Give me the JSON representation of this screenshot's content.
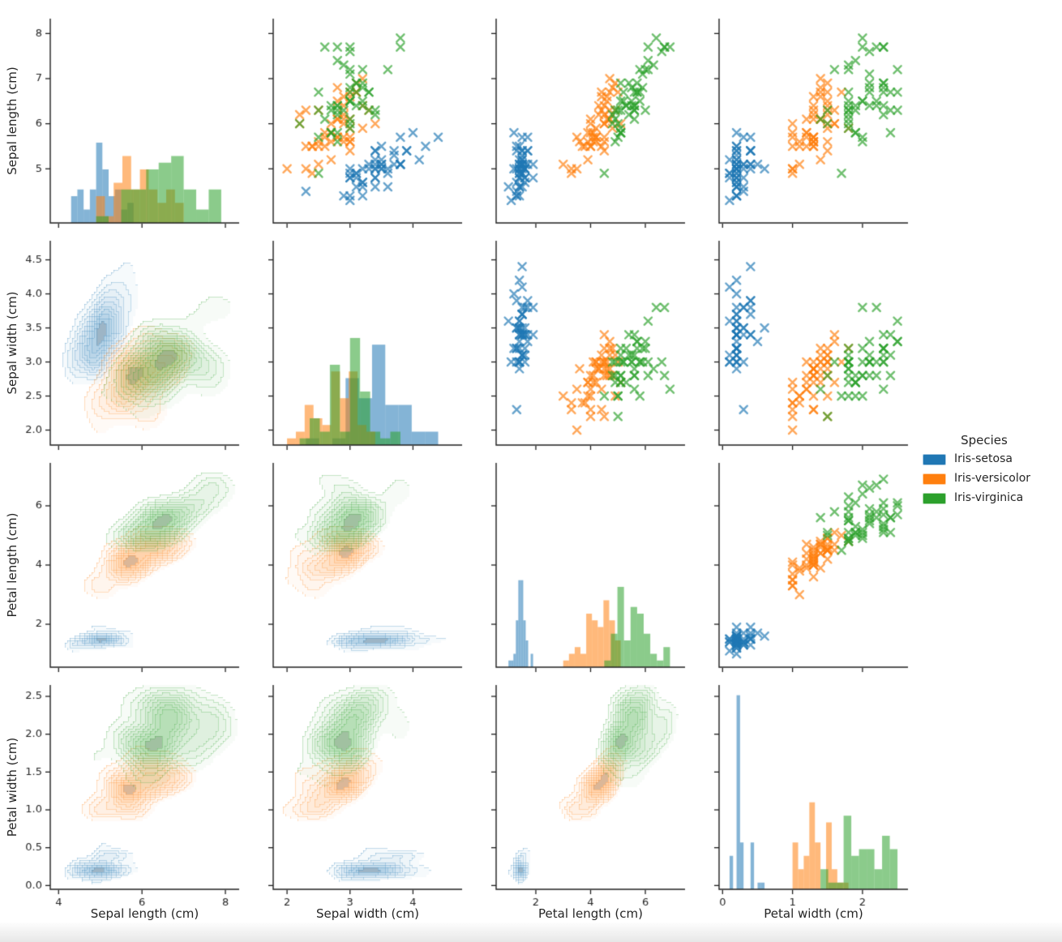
{
  "page": {
    "background": "#ffffff"
  },
  "legend": {
    "title": "Species",
    "entries": [
      {
        "label": "Iris-setosa",
        "color": "#1f77b4"
      },
      {
        "label": "Iris-versicolor",
        "color": "#ff7f0e"
      },
      {
        "label": "Iris-virginica",
        "color": "#2ca02c"
      }
    ]
  },
  "chart_data": {
    "type": "scatter",
    "subtype": "pairplot-matrix",
    "diagonal": "overlaid per-species histograms",
    "upper_triangle": "scatter with x markers",
    "lower_triangle": "filled KDE density contours",
    "grid": false,
    "legend_position": "right",
    "marker": "x",
    "variables": [
      {
        "key": "sepal_length",
        "label": "Sepal length (cm)",
        "lim": [
          3.8,
          8.33
        ],
        "xticks": [
          4,
          6,
          8
        ],
        "xtick_labels": [
          "4",
          "6",
          "8"
        ],
        "yticks": [
          5,
          6,
          7,
          8
        ],
        "ytick_labels": [
          "5",
          "6",
          "7",
          "8"
        ]
      },
      {
        "key": "sepal_width",
        "label": "Sepal width (cm)",
        "lim": [
          1.78,
          4.78
        ],
        "xticks": [
          2,
          3,
          4
        ],
        "xtick_labels": [
          "2",
          "3",
          "4"
        ],
        "yticks": [
          2.0,
          2.5,
          3.0,
          3.5,
          4.0,
          4.5
        ],
        "ytick_labels": [
          "2.0",
          "2.5",
          "3.0",
          "3.5",
          "4.0",
          "4.5"
        ]
      },
      {
        "key": "petal_length",
        "label": "Petal length (cm)",
        "lim": [
          0.55,
          7.45
        ],
        "xticks": [
          2,
          4,
          6
        ],
        "xtick_labels": [
          "2",
          "4",
          "6"
        ],
        "yticks": [
          2,
          4,
          6
        ],
        "ytick_labels": [
          "2",
          "4",
          "6"
        ]
      },
      {
        "key": "petal_width",
        "label": "Petal width (cm)",
        "lim": [
          -0.05,
          2.65
        ],
        "xticks": [
          0,
          1,
          2
        ],
        "xtick_labels": [
          "0",
          "1",
          "2"
        ],
        "yticks": [
          0.0,
          0.5,
          1.0,
          1.5,
          2.0,
          2.5
        ],
        "ytick_labels": [
          "0.0",
          "0.5",
          "1.0",
          "1.5",
          "2.0",
          "2.5"
        ]
      }
    ],
    "series": [
      {
        "name": "Iris-setosa",
        "color": "#1f77b4",
        "sepal_length": [
          5.1,
          4.9,
          4.7,
          4.6,
          5.0,
          5.4,
          4.6,
          5.0,
          4.4,
          4.9,
          5.4,
          4.8,
          4.8,
          4.3,
          5.8,
          5.7,
          5.4,
          5.1,
          5.7,
          5.1,
          5.4,
          5.1,
          4.6,
          5.1,
          4.8,
          5.0,
          5.0,
          5.2,
          5.2,
          4.7,
          4.8,
          5.4,
          5.2,
          5.5,
          4.9,
          5.0,
          5.5,
          4.9,
          4.4,
          5.1,
          5.0,
          4.5,
          4.4,
          5.0,
          5.1,
          4.8,
          5.1,
          4.6,
          5.3,
          5.0
        ],
        "sepal_width": [
          3.5,
          3.0,
          3.2,
          3.1,
          3.6,
          3.9,
          3.4,
          3.4,
          2.9,
          3.1,
          3.7,
          3.4,
          3.0,
          3.0,
          4.0,
          4.4,
          3.9,
          3.5,
          3.8,
          3.8,
          3.4,
          3.7,
          3.6,
          3.3,
          3.4,
          3.0,
          3.4,
          3.5,
          3.4,
          3.2,
          3.1,
          3.4,
          4.1,
          4.2,
          3.1,
          3.2,
          3.5,
          3.6,
          3.0,
          3.4,
          3.5,
          2.3,
          3.2,
          3.5,
          3.8,
          3.0,
          3.8,
          3.2,
          3.7,
          3.3
        ],
        "petal_length": [
          1.4,
          1.4,
          1.3,
          1.5,
          1.4,
          1.7,
          1.4,
          1.5,
          1.4,
          1.5,
          1.5,
          1.6,
          1.4,
          1.1,
          1.2,
          1.5,
          1.3,
          1.4,
          1.7,
          1.5,
          1.7,
          1.5,
          1.0,
          1.7,
          1.9,
          1.6,
          1.6,
          1.5,
          1.4,
          1.6,
          1.6,
          1.5,
          1.5,
          1.4,
          1.5,
          1.2,
          1.3,
          1.4,
          1.3,
          1.5,
          1.3,
          1.3,
          1.3,
          1.6,
          1.9,
          1.4,
          1.6,
          1.4,
          1.5,
          1.4
        ],
        "petal_width": [
          0.2,
          0.2,
          0.2,
          0.2,
          0.2,
          0.4,
          0.3,
          0.2,
          0.2,
          0.1,
          0.2,
          0.2,
          0.1,
          0.1,
          0.2,
          0.4,
          0.4,
          0.3,
          0.3,
          0.3,
          0.2,
          0.4,
          0.2,
          0.5,
          0.2,
          0.2,
          0.4,
          0.2,
          0.2,
          0.2,
          0.2,
          0.4,
          0.1,
          0.2,
          0.2,
          0.2,
          0.2,
          0.1,
          0.2,
          0.2,
          0.3,
          0.3,
          0.2,
          0.6,
          0.4,
          0.3,
          0.2,
          0.2,
          0.2,
          0.2
        ]
      },
      {
        "name": "Iris-versicolor",
        "color": "#ff7f0e",
        "sepal_length": [
          7.0,
          6.4,
          6.9,
          5.5,
          6.5,
          5.7,
          6.3,
          4.9,
          6.6,
          5.2,
          5.0,
          5.9,
          6.0,
          6.1,
          5.6,
          6.7,
          5.6,
          5.8,
          6.2,
          5.6,
          5.9,
          6.1,
          6.3,
          6.1,
          6.4,
          6.6,
          6.8,
          6.7,
          6.0,
          5.7,
          5.5,
          5.5,
          5.8,
          6.0,
          5.4,
          6.0,
          6.7,
          6.3,
          5.6,
          5.5,
          5.5,
          6.1,
          5.8,
          5.0,
          5.6,
          5.7,
          5.7,
          6.2,
          5.1,
          5.7
        ],
        "sepal_width": [
          3.2,
          3.2,
          3.1,
          2.3,
          2.8,
          2.8,
          3.3,
          2.4,
          2.9,
          2.7,
          2.0,
          3.0,
          2.2,
          2.9,
          2.9,
          3.1,
          3.0,
          2.7,
          2.2,
          2.5,
          3.2,
          2.8,
          2.5,
          2.8,
          2.9,
          3.0,
          2.8,
          3.0,
          2.9,
          2.6,
          2.4,
          2.4,
          2.7,
          2.7,
          3.0,
          3.4,
          3.1,
          2.3,
          3.0,
          2.5,
          2.6,
          3.0,
          2.6,
          2.3,
          2.7,
          3.0,
          2.9,
          2.9,
          2.5,
          2.8
        ],
        "petal_length": [
          4.7,
          4.5,
          4.9,
          4.0,
          4.6,
          4.5,
          4.7,
          3.3,
          4.6,
          3.9,
          3.5,
          4.2,
          4.0,
          4.7,
          3.6,
          4.4,
          4.5,
          4.1,
          4.5,
          3.9,
          4.8,
          4.0,
          4.9,
          4.7,
          4.3,
          4.4,
          4.8,
          5.0,
          4.5,
          3.5,
          3.8,
          3.7,
          3.9,
          5.1,
          4.5,
          4.5,
          4.7,
          4.4,
          4.1,
          4.0,
          4.4,
          4.6,
          4.0,
          3.3,
          4.2,
          4.2,
          4.2,
          4.3,
          3.0,
          4.1
        ],
        "petal_width": [
          1.4,
          1.5,
          1.5,
          1.3,
          1.5,
          1.3,
          1.6,
          1.0,
          1.3,
          1.4,
          1.0,
          1.5,
          1.0,
          1.4,
          1.3,
          1.4,
          1.5,
          1.0,
          1.5,
          1.1,
          1.8,
          1.3,
          1.5,
          1.2,
          1.3,
          1.4,
          1.4,
          1.7,
          1.5,
          1.0,
          1.1,
          1.0,
          1.2,
          1.6,
          1.5,
          1.6,
          1.5,
          1.3,
          1.3,
          1.3,
          1.2,
          1.4,
          1.2,
          1.0,
          1.3,
          1.2,
          1.3,
          1.3,
          1.1,
          1.3
        ]
      },
      {
        "name": "Iris-virginica",
        "color": "#2ca02c",
        "sepal_length": [
          6.3,
          5.8,
          7.1,
          6.3,
          6.5,
          7.6,
          4.9,
          7.3,
          6.7,
          7.2,
          6.5,
          6.4,
          6.8,
          5.7,
          5.8,
          6.4,
          6.5,
          7.7,
          7.7,
          6.0,
          6.9,
          5.6,
          7.7,
          6.3,
          6.7,
          7.2,
          6.2,
          6.1,
          6.4,
          7.2,
          7.4,
          7.9,
          6.4,
          6.3,
          6.1,
          7.7,
          6.3,
          6.4,
          6.0,
          6.9,
          6.7,
          6.9,
          5.8,
          6.8,
          6.7,
          6.7,
          6.3,
          6.5,
          6.2,
          5.9
        ],
        "sepal_width": [
          3.3,
          2.7,
          3.0,
          2.9,
          3.0,
          3.0,
          2.5,
          2.9,
          2.5,
          3.6,
          3.2,
          2.7,
          3.0,
          2.5,
          2.8,
          3.2,
          3.0,
          3.8,
          2.6,
          2.2,
          3.2,
          2.8,
          2.8,
          2.7,
          3.3,
          3.2,
          2.8,
          3.0,
          2.8,
          3.0,
          2.8,
          3.8,
          2.8,
          2.8,
          2.6,
          3.0,
          3.4,
          3.1,
          3.0,
          3.1,
          3.1,
          3.1,
          2.7,
          3.2,
          3.3,
          3.0,
          2.5,
          3.0,
          3.4,
          3.0
        ],
        "petal_length": [
          6.0,
          5.1,
          5.9,
          5.6,
          5.8,
          6.6,
          4.5,
          6.3,
          5.8,
          6.1,
          5.1,
          5.3,
          5.5,
          5.0,
          5.1,
          5.3,
          5.5,
          6.7,
          6.9,
          5.0,
          5.7,
          4.9,
          6.7,
          4.9,
          5.7,
          6.0,
          4.8,
          4.9,
          5.6,
          5.8,
          6.1,
          6.4,
          5.6,
          5.1,
          5.6,
          6.1,
          5.6,
          5.5,
          4.8,
          5.4,
          5.6,
          5.1,
          5.1,
          5.9,
          5.7,
          5.2,
          5.0,
          5.2,
          5.4,
          5.1
        ],
        "petal_width": [
          2.5,
          1.9,
          2.1,
          1.8,
          2.2,
          2.1,
          1.7,
          1.8,
          1.8,
          2.5,
          2.0,
          1.9,
          2.1,
          2.0,
          2.4,
          2.3,
          1.8,
          2.2,
          2.3,
          1.5,
          2.3,
          2.0,
          2.0,
          1.8,
          2.1,
          1.8,
          1.8,
          1.8,
          2.1,
          1.6,
          1.9,
          2.0,
          2.2,
          1.5,
          1.4,
          2.3,
          2.4,
          1.8,
          1.8,
          2.1,
          2.4,
          2.3,
          1.9,
          2.3,
          2.5,
          2.3,
          1.9,
          2.0,
          2.3,
          1.8
        ]
      }
    ]
  }
}
